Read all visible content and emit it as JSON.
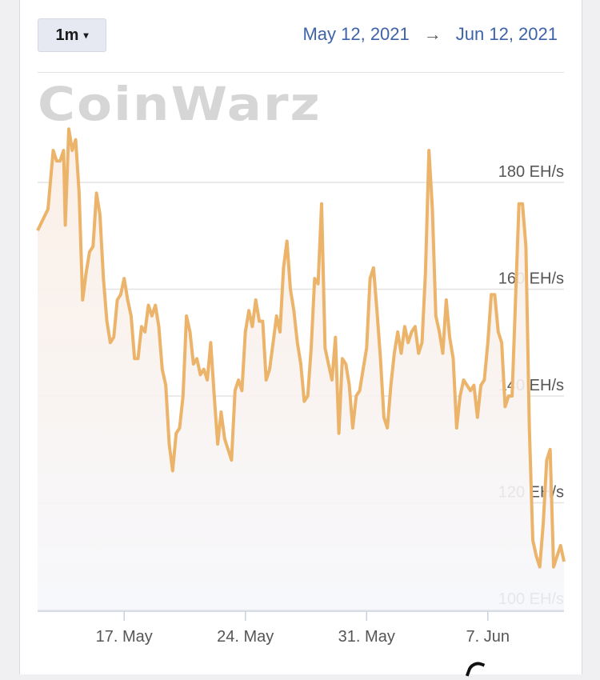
{
  "controls": {
    "range_label": "1m",
    "range_caret": "▾",
    "start_date": "May 12, 2021",
    "arrow": "→",
    "end_date": "Jun 12, 2021"
  },
  "watermark": "CoinWarz",
  "colors": {
    "line": "#ebb46a",
    "date_text": "#3e63a8"
  },
  "chart_data": {
    "type": "area",
    "title": "",
    "xlabel": "",
    "ylabel": "",
    "x_ticks": [
      {
        "label": "17. May",
        "day": 17
      },
      {
        "label": "24. May",
        "day": 24
      },
      {
        "label": "31. May",
        "day": 31
      },
      {
        "label": "7. Jun",
        "day": 38
      }
    ],
    "y_ticks": [
      {
        "label": "100 EH/s",
        "value": 100
      },
      {
        "label": "120 EH/s",
        "value": 120
      },
      {
        "label": "140 EH/s",
        "value": 140
      },
      {
        "label": "160 EH/s",
        "value": 160
      },
      {
        "label": "180 EH/s",
        "value": 180
      }
    ],
    "ylim": [
      100,
      180
    ],
    "grid": true,
    "series": [
      {
        "x": [
          12.0,
          12.3,
          12.6,
          12.9,
          13.1,
          13.3,
          13.5,
          13.6,
          13.8,
          14.0,
          14.2,
          14.4,
          14.6,
          14.8,
          15.0,
          15.2,
          15.4,
          15.6,
          15.8,
          16.0,
          16.2,
          16.4,
          16.6,
          16.8,
          17.0,
          17.2,
          17.4,
          17.6,
          17.8,
          18.0,
          18.2,
          18.4,
          18.6,
          18.8,
          19.0,
          19.2,
          19.4,
          19.6,
          19.8,
          20.0,
          20.2,
          20.4,
          20.6,
          20.8,
          21.0,
          21.2,
          21.4,
          21.6,
          21.8,
          22.0,
          22.2,
          22.4,
          22.6,
          22.8,
          23.0,
          23.2,
          23.4,
          23.6,
          23.8,
          24.0,
          24.2,
          24.4,
          24.6,
          24.8,
          25.0,
          25.2,
          25.4,
          25.6,
          25.8,
          26.0,
          26.2,
          26.4,
          26.6,
          26.8,
          27.0,
          27.2,
          27.4,
          27.6,
          27.8,
          28.0,
          28.2,
          28.4,
          28.6,
          28.8,
          29.0,
          29.2,
          29.4,
          29.6,
          29.8,
          30.0,
          30.2,
          30.4,
          30.6,
          30.8,
          31.0,
          31.2,
          31.4,
          31.6,
          31.8,
          32.0,
          32.2,
          32.4,
          32.6,
          32.8,
          33.0,
          33.2,
          33.4,
          33.6,
          33.8,
          34.0,
          34.2,
          34.4,
          34.6,
          34.8,
          35.0,
          35.2,
          35.4,
          35.6,
          35.8,
          36.0,
          36.2,
          36.4,
          36.6,
          36.8,
          37.0,
          37.2,
          37.4,
          37.6,
          37.8,
          38.0,
          38.2,
          38.4,
          38.6,
          38.8,
          39.0,
          39.2,
          39.4,
          39.6,
          39.8,
          40.0,
          40.2,
          40.4,
          40.6,
          40.8,
          41.0,
          41.2,
          41.4,
          41.6,
          41.8,
          42.0,
          42.2,
          42.4
        ],
        "values": [
          171,
          173,
          175,
          186,
          184,
          184,
          186,
          172,
          190,
          186,
          188,
          178,
          158,
          163,
          167,
          168,
          178,
          174,
          162,
          154,
          150,
          151,
          158,
          159,
          162,
          158,
          155,
          147,
          147,
          153,
          152,
          157,
          155,
          157,
          153,
          145,
          142,
          131,
          126,
          133,
          134,
          140,
          155,
          152,
          146,
          147,
          144,
          145,
          143,
          150,
          140,
          131,
          137,
          132,
          130,
          128,
          141,
          143,
          141,
          152,
          156,
          153,
          158,
          154,
          154,
          143,
          145,
          150,
          155,
          152,
          164,
          169,
          160,
          156,
          150,
          146,
          139,
          140,
          149,
          162,
          161,
          176,
          149,
          146,
          143,
          151,
          133,
          147,
          146,
          142,
          134,
          140,
          141,
          145,
          149,
          162,
          164,
          156,
          147,
          136,
          134,
          142,
          148,
          152,
          148,
          153,
          150,
          152,
          153,
          148,
          150,
          163,
          186,
          175,
          155,
          152,
          148,
          158,
          151,
          147,
          134,
          140,
          143,
          142,
          141,
          142,
          136,
          142,
          143,
          150,
          159,
          159,
          152,
          150,
          138,
          140,
          140,
          158,
          176,
          176,
          168,
          134,
          113,
          110,
          108,
          116,
          128,
          130,
          108,
          110,
          112,
          109
        ]
      }
    ]
  }
}
